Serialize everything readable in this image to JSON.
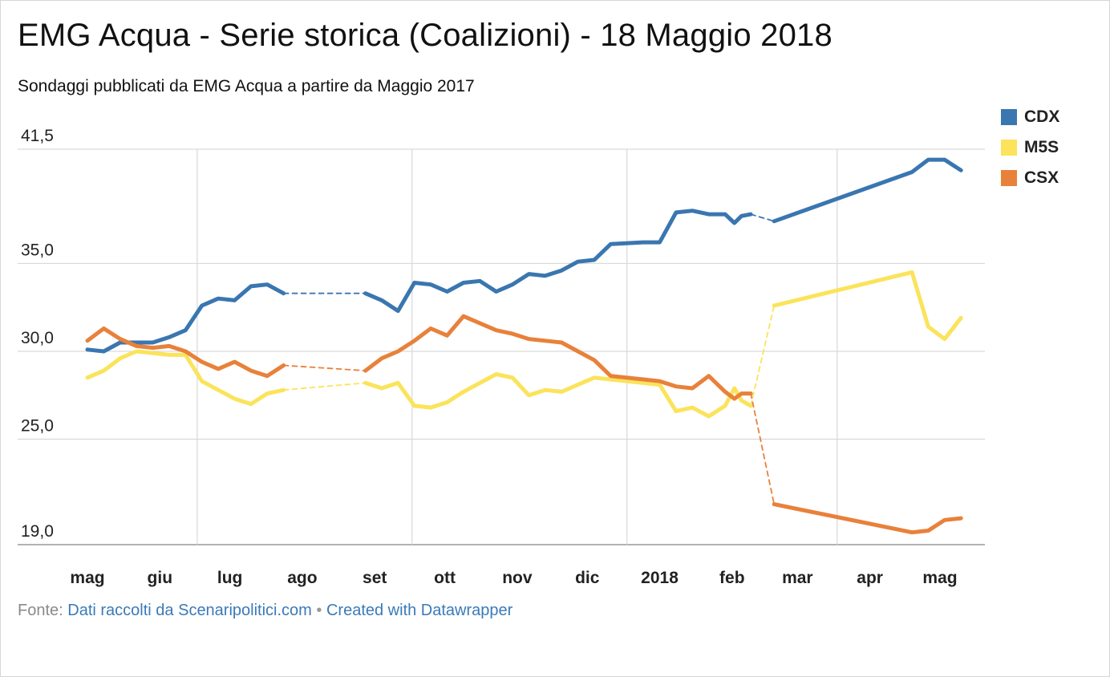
{
  "title": "EMG Acqua - Serie storica (Coalizioni) - 18 Maggio 2018",
  "subtitle": "Sondaggi pubblicati da EMG Acqua a partire da Maggio 2017",
  "footer": {
    "source_prefix": "Fonte:",
    "source_link": "Dati raccolti da Scenaripolitici.com",
    "separator": "•",
    "created_link": "Created with Datawrapper"
  },
  "chart_data": {
    "type": "line",
    "title": "EMG Acqua - Serie storica (Coalizioni) - 18 Maggio 2018",
    "subtitle": "Sondaggi pubblicati da EMG Acqua a partire da Maggio 2017",
    "xlabel": "",
    "ylabel": "",
    "ylim": [
      19.0,
      41.5
    ],
    "xlim": [
      "2017-04-30",
      "2018-05-29"
    ],
    "y_ticks": [
      "19,0",
      "25,0",
      "30,0",
      "35,0",
      "41,5"
    ],
    "y_tick_values": [
      19.0,
      25.0,
      30.0,
      35.0,
      41.5
    ],
    "x_ticks": [
      {
        "label": "mag",
        "date": "2017-05-15"
      },
      {
        "label": "giu",
        "date": "2017-06-15"
      },
      {
        "label": "lug",
        "date": "2017-07-15"
      },
      {
        "label": "ago",
        "date": "2017-08-15"
      },
      {
        "label": "set",
        "date": "2017-09-15"
      },
      {
        "label": "ott",
        "date": "2017-10-15"
      },
      {
        "label": "nov",
        "date": "2017-11-15"
      },
      {
        "label": "dic",
        "date": "2017-12-15"
      },
      {
        "label": "2018",
        "date": "2018-01-15"
      },
      {
        "label": "feb",
        "date": "2018-02-15"
      },
      {
        "label": "mar",
        "date": "2018-03-15"
      },
      {
        "label": "apr",
        "date": "2018-04-15"
      },
      {
        "label": "mag",
        "date": "2018-05-15"
      }
    ],
    "x_gridlines": [
      "2017-07-01",
      "2017-10-01",
      "2018-01-01",
      "2018-04-01"
    ],
    "grid": true,
    "legend_position": "top-right",
    "series": [
      {
        "name": "CDX",
        "color": "#3a76b0",
        "points": [
          [
            "2017-05-15",
            30.1
          ],
          [
            "2017-05-22",
            30.0
          ],
          [
            "2017-05-29",
            30.5
          ],
          [
            "2017-06-05",
            30.5
          ],
          [
            "2017-06-12",
            30.5
          ],
          [
            "2017-06-19",
            30.8
          ],
          [
            "2017-06-26",
            31.2
          ],
          [
            "2017-07-03",
            32.6
          ],
          [
            "2017-07-10",
            33.0
          ],
          [
            "2017-07-17",
            32.9
          ],
          [
            "2017-07-24",
            33.7
          ],
          [
            "2017-07-31",
            33.8
          ],
          [
            "2017-08-07",
            33.3
          ],
          [
            "2017-09-11",
            33.3
          ],
          [
            "2017-09-18",
            32.9
          ],
          [
            "2017-09-25",
            32.3
          ],
          [
            "2017-10-02",
            33.9
          ],
          [
            "2017-10-09",
            33.8
          ],
          [
            "2017-10-16",
            33.4
          ],
          [
            "2017-10-23",
            33.9
          ],
          [
            "2017-10-30",
            34.0
          ],
          [
            "2017-11-06",
            33.4
          ],
          [
            "2017-11-13",
            33.8
          ],
          [
            "2017-11-20",
            34.4
          ],
          [
            "2017-11-27",
            34.3
          ],
          [
            "2017-12-04",
            34.6
          ],
          [
            "2017-12-11",
            35.1
          ],
          [
            "2017-12-18",
            35.2
          ],
          [
            "2017-12-25",
            36.1
          ],
          [
            "2018-01-08",
            36.2
          ],
          [
            "2018-01-15",
            36.2
          ],
          [
            "2018-01-22",
            37.9
          ],
          [
            "2018-01-29",
            38.0
          ],
          [
            "2018-02-05",
            37.8
          ],
          [
            "2018-02-12",
            37.8
          ],
          [
            "2018-02-16",
            37.3
          ],
          [
            "2018-02-19",
            37.7
          ],
          [
            "2018-02-23",
            37.8
          ],
          [
            "2018-03-05",
            37.4
          ],
          [
            "2018-05-03",
            40.2
          ],
          [
            "2018-05-10",
            40.9
          ],
          [
            "2018-05-17",
            40.9
          ],
          [
            "2018-05-24",
            40.3
          ]
        ],
        "gaps_dashed": [
          [
            "2017-08-07",
            "2017-09-11"
          ],
          [
            "2018-02-23",
            "2018-03-05"
          ]
        ]
      },
      {
        "name": "M5S",
        "color": "#fbe35b",
        "points": [
          [
            "2017-05-15",
            28.5
          ],
          [
            "2017-05-22",
            28.9
          ],
          [
            "2017-05-29",
            29.6
          ],
          [
            "2017-06-05",
            30.0
          ],
          [
            "2017-06-12",
            29.9
          ],
          [
            "2017-06-19",
            29.8
          ],
          [
            "2017-06-26",
            29.8
          ],
          [
            "2017-07-03",
            28.3
          ],
          [
            "2017-07-10",
            27.8
          ],
          [
            "2017-07-17",
            27.3
          ],
          [
            "2017-07-24",
            27.0
          ],
          [
            "2017-07-31",
            27.6
          ],
          [
            "2017-08-07",
            27.8
          ],
          [
            "2017-09-11",
            28.2
          ],
          [
            "2017-09-18",
            27.9
          ],
          [
            "2017-09-25",
            28.2
          ],
          [
            "2017-10-02",
            26.9
          ],
          [
            "2017-10-09",
            26.8
          ],
          [
            "2017-10-16",
            27.1
          ],
          [
            "2017-10-23",
            27.7
          ],
          [
            "2017-10-30",
            28.2
          ],
          [
            "2017-11-06",
            28.7
          ],
          [
            "2017-11-13",
            28.5
          ],
          [
            "2017-11-20",
            27.5
          ],
          [
            "2017-11-27",
            27.8
          ],
          [
            "2017-12-04",
            27.7
          ],
          [
            "2017-12-11",
            28.1
          ],
          [
            "2017-12-18",
            28.5
          ],
          [
            "2017-12-25",
            28.4
          ],
          [
            "2018-01-08",
            28.2
          ],
          [
            "2018-01-15",
            28.1
          ],
          [
            "2018-01-22",
            26.6
          ],
          [
            "2018-01-29",
            26.8
          ],
          [
            "2018-02-05",
            26.3
          ],
          [
            "2018-02-12",
            26.9
          ],
          [
            "2018-02-16",
            27.9
          ],
          [
            "2018-02-19",
            27.2
          ],
          [
            "2018-02-23",
            26.9
          ],
          [
            "2018-03-05",
            32.6
          ],
          [
            "2018-05-03",
            34.5
          ],
          [
            "2018-05-10",
            31.4
          ],
          [
            "2018-05-17",
            30.7
          ],
          [
            "2018-05-24",
            31.9
          ]
        ],
        "gaps_dashed": [
          [
            "2017-08-07",
            "2017-09-11"
          ],
          [
            "2018-02-23",
            "2018-03-05"
          ]
        ]
      },
      {
        "name": "CSX",
        "color": "#e8813a",
        "points": [
          [
            "2017-05-15",
            30.6
          ],
          [
            "2017-05-22",
            31.3
          ],
          [
            "2017-05-29",
            30.7
          ],
          [
            "2017-06-05",
            30.3
          ],
          [
            "2017-06-12",
            30.2
          ],
          [
            "2017-06-19",
            30.3
          ],
          [
            "2017-06-26",
            30.0
          ],
          [
            "2017-07-03",
            29.4
          ],
          [
            "2017-07-10",
            29.0
          ],
          [
            "2017-07-17",
            29.4
          ],
          [
            "2017-07-24",
            28.9
          ],
          [
            "2017-07-31",
            28.6
          ],
          [
            "2017-08-07",
            29.2
          ],
          [
            "2017-09-11",
            28.9
          ],
          [
            "2017-09-18",
            29.6
          ],
          [
            "2017-09-25",
            30.0
          ],
          [
            "2017-10-02",
            30.6
          ],
          [
            "2017-10-09",
            31.3
          ],
          [
            "2017-10-16",
            30.9
          ],
          [
            "2017-10-23",
            32.0
          ],
          [
            "2017-10-30",
            31.6
          ],
          [
            "2017-11-06",
            31.2
          ],
          [
            "2017-11-13",
            31.0
          ],
          [
            "2017-11-20",
            30.7
          ],
          [
            "2017-11-27",
            30.6
          ],
          [
            "2017-12-04",
            30.5
          ],
          [
            "2017-12-11",
            30.0
          ],
          [
            "2017-12-18",
            29.5
          ],
          [
            "2017-12-25",
            28.6
          ],
          [
            "2018-01-08",
            28.4
          ],
          [
            "2018-01-15",
            28.3
          ],
          [
            "2018-01-22",
            28.0
          ],
          [
            "2018-01-29",
            27.9
          ],
          [
            "2018-02-05",
            28.6
          ],
          [
            "2018-02-12",
            27.7
          ],
          [
            "2018-02-16",
            27.3
          ],
          [
            "2018-02-19",
            27.6
          ],
          [
            "2018-02-23",
            27.6
          ],
          [
            "2018-03-05",
            21.3
          ],
          [
            "2018-05-03",
            19.7
          ],
          [
            "2018-05-10",
            19.8
          ],
          [
            "2018-05-17",
            20.4
          ],
          [
            "2018-05-24",
            20.5
          ]
        ],
        "gaps_dashed": [
          [
            "2017-08-07",
            "2017-09-11"
          ],
          [
            "2018-02-23",
            "2018-03-05"
          ]
        ]
      }
    ]
  },
  "legend": [
    {
      "label": "CDX",
      "color": "#3a76b0"
    },
    {
      "label": "M5S",
      "color": "#fbe35b"
    },
    {
      "label": "CSX",
      "color": "#e8813a"
    }
  ]
}
